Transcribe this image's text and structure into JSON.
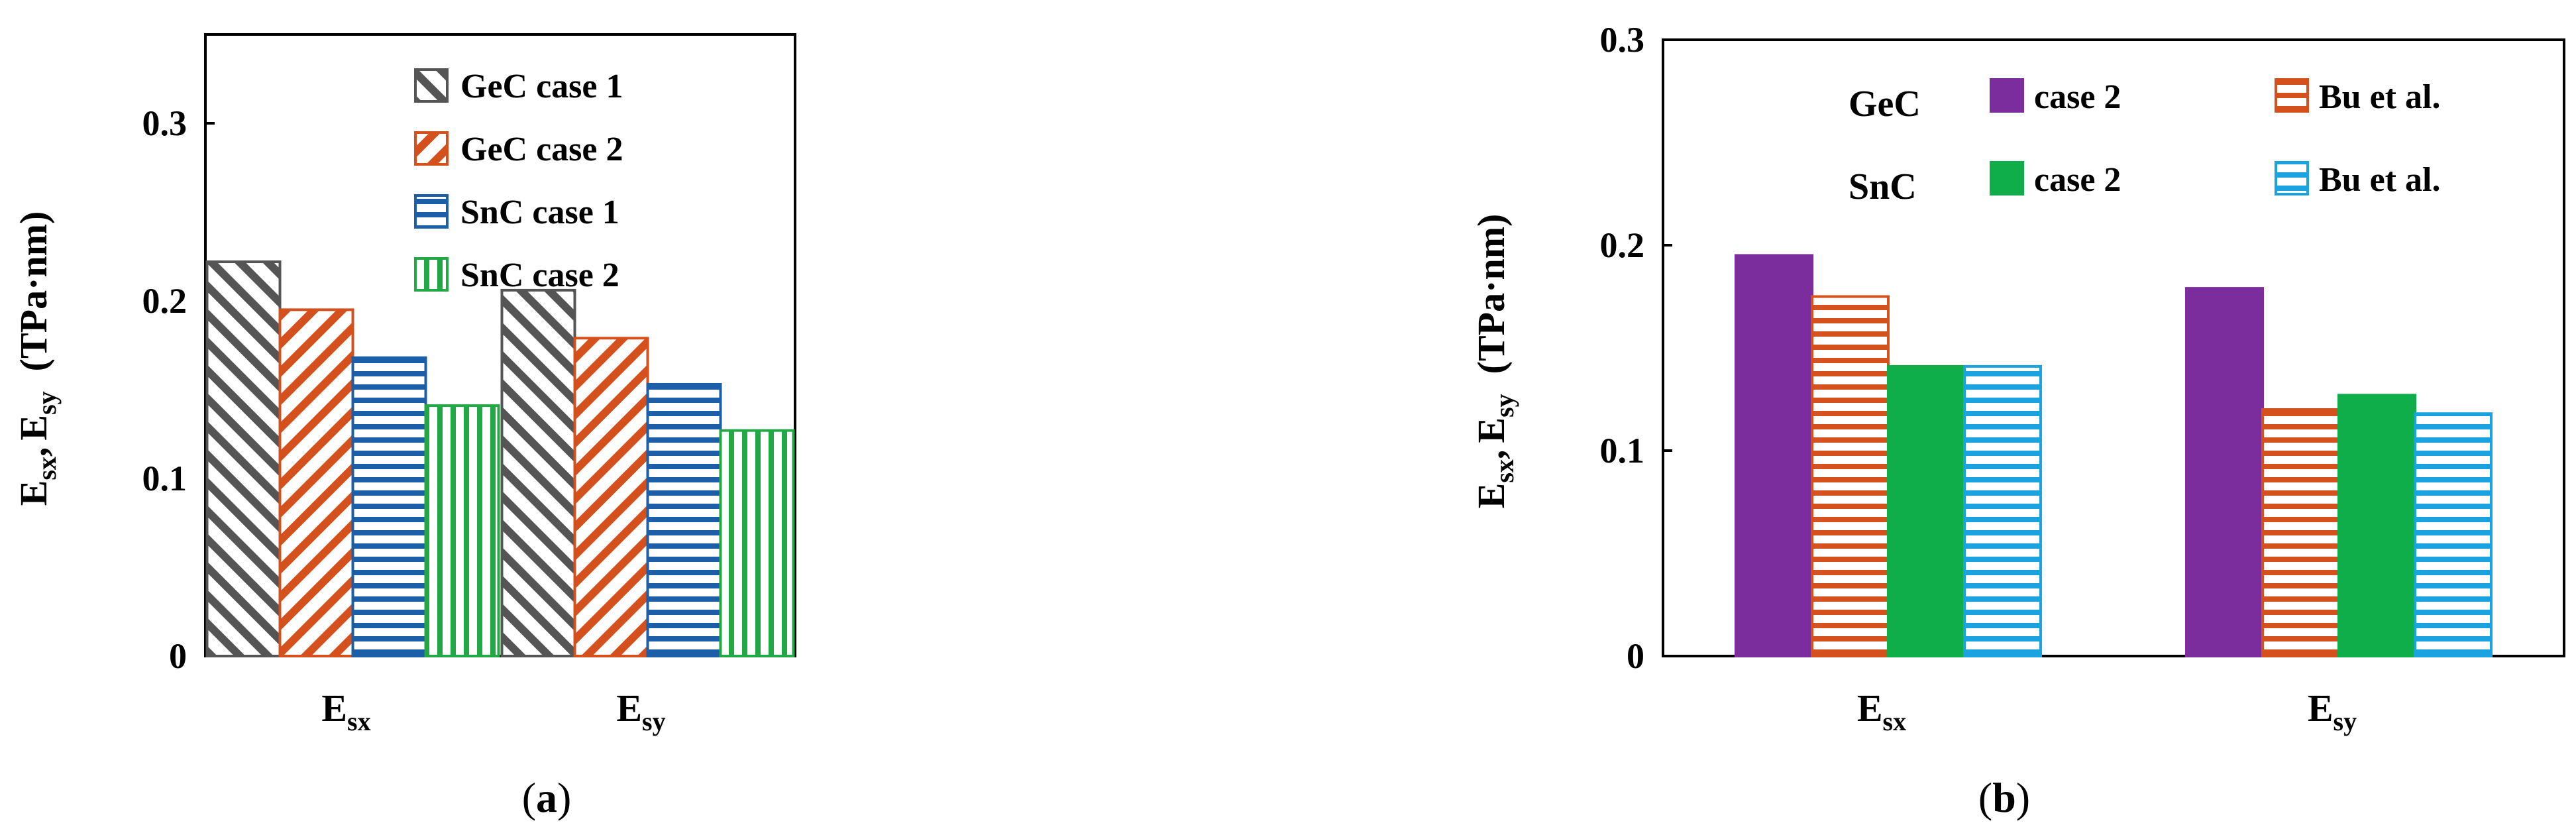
{
  "chart_data": [
    {
      "panel": "a",
      "type": "bar",
      "categories": [
        {
          "main": "E",
          "sub": "sx"
        },
        {
          "main": "E",
          "sub": "sy"
        }
      ],
      "ylabel": {
        "main1": "E",
        "sub1": "sx",
        "sep": ",",
        "main2": "E",
        "sub2": "sy",
        "unit": "(TPa·nm)"
      },
      "ylim": [
        0,
        0.35
      ],
      "yticks": [
        {
          "value": 0,
          "label": "0"
        },
        {
          "value": 0.1,
          "label": "0.1"
        },
        {
          "value": 0.2,
          "label": "0.2"
        },
        {
          "value": 0.3,
          "label": "0.3"
        }
      ],
      "series": [
        {
          "name": "GeC case 1",
          "color": "#555555",
          "pattern": "diag-up",
          "values": [
            0.222,
            0.206
          ]
        },
        {
          "name": "GeC case 2",
          "color": "#d4501c",
          "pattern": "diag-down",
          "values": [
            0.195,
            0.179
          ]
        },
        {
          "name": "SnC case 1",
          "color": "#1c5ea8",
          "pattern": "horizontal",
          "values": [
            0.168,
            0.153
          ]
        },
        {
          "name": "SnC case 2",
          "color": "#22a845",
          "pattern": "vertical",
          "values": [
            0.141,
            0.127
          ]
        }
      ],
      "panel_label": {
        "open": "(",
        "letter": "a",
        "close": ")"
      }
    },
    {
      "panel": "b",
      "type": "bar",
      "categories": [
        {
          "main": "E",
          "sub": "sx"
        },
        {
          "main": "E",
          "sub": "sy"
        }
      ],
      "ylabel": {
        "main1": "E",
        "sub1": "sx",
        "sep": ",",
        "main2": "E",
        "sub2": "sy",
        "unit": "(TPa·nm)"
      },
      "ylim": [
        0,
        0.3
      ],
      "yticks": [
        {
          "value": 0,
          "label": "0"
        },
        {
          "value": 0.1,
          "label": "0.1"
        },
        {
          "value": 0.2,
          "label": "0.2"
        },
        {
          "value": 0.3,
          "label": "0.3"
        }
      ],
      "legend_groups": [
        "GeC",
        "SnC"
      ],
      "series": [
        {
          "name": "case 2",
          "group": "GeC",
          "color": "#7b2d9e",
          "pattern": "solid",
          "values": [
            0.195,
            0.179
          ]
        },
        {
          "name": "Bu et al.",
          "group": "GeC",
          "color": "#d4501c",
          "pattern": "horizontal",
          "values": [
            0.175,
            0.12
          ]
        },
        {
          "name": "case 2",
          "group": "SnC",
          "color": "#0fae4b",
          "pattern": "solid",
          "values": [
            0.141,
            0.127
          ]
        },
        {
          "name": "Bu et al.",
          "group": "SnC",
          "color": "#1aa3e0",
          "pattern": "horizontal",
          "values": [
            0.141,
            0.118
          ]
        }
      ],
      "panel_label": {
        "open": "(",
        "letter": "b",
        "close": ")"
      }
    }
  ]
}
